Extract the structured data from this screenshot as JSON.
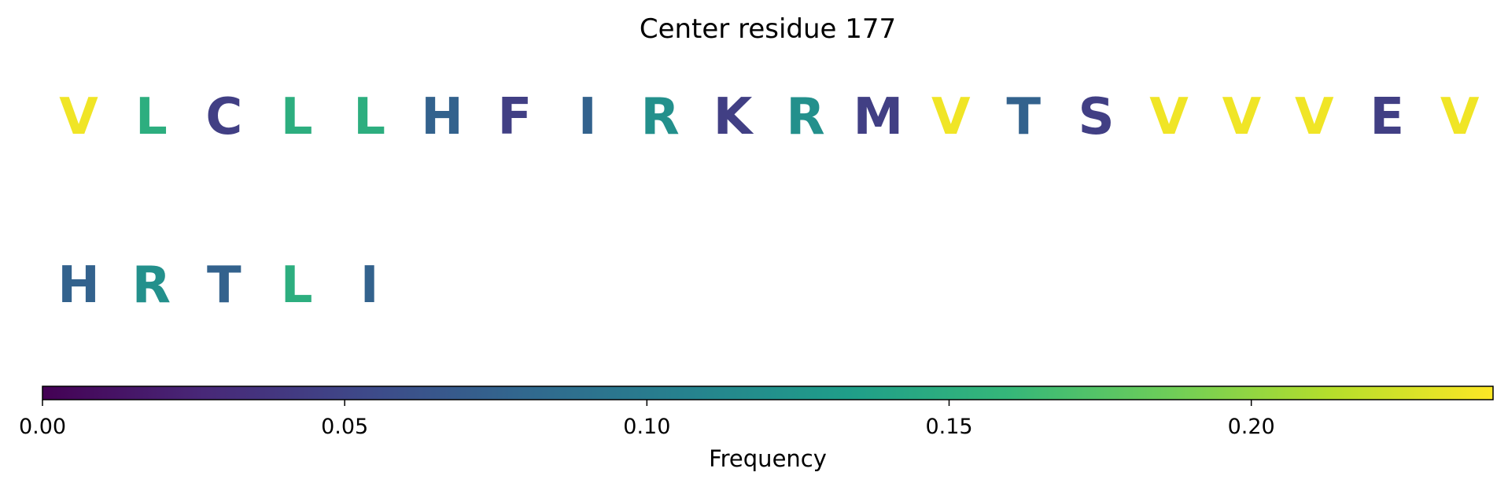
{
  "chart_data": {
    "type": "sequence-logo",
    "title": "Center residue 177",
    "rows": [
      {
        "residues": [
          {
            "letter": "V",
            "frequency": 0.235
          },
          {
            "letter": "L",
            "frequency": 0.15
          },
          {
            "letter": "C",
            "frequency": 0.045
          },
          {
            "letter": "L",
            "frequency": 0.15
          },
          {
            "letter": "L",
            "frequency": 0.15
          },
          {
            "letter": "H",
            "frequency": 0.075
          },
          {
            "letter": "F",
            "frequency": 0.045
          },
          {
            "letter": "I",
            "frequency": 0.075
          },
          {
            "letter": "R",
            "frequency": 0.12
          },
          {
            "letter": "K",
            "frequency": 0.045
          },
          {
            "letter": "R",
            "frequency": 0.12
          },
          {
            "letter": "M",
            "frequency": 0.045
          },
          {
            "letter": "V",
            "frequency": 0.235
          },
          {
            "letter": "T",
            "frequency": 0.075
          },
          {
            "letter": "S",
            "frequency": 0.045
          },
          {
            "letter": "V",
            "frequency": 0.235
          },
          {
            "letter": "V",
            "frequency": 0.235
          },
          {
            "letter": "V",
            "frequency": 0.235
          },
          {
            "letter": "E",
            "frequency": 0.045
          },
          {
            "letter": "V",
            "frequency": 0.235
          }
        ]
      },
      {
        "residues": [
          {
            "letter": "H",
            "frequency": 0.075
          },
          {
            "letter": "R",
            "frequency": 0.12
          },
          {
            "letter": "T",
            "frequency": 0.075
          },
          {
            "letter": "L",
            "frequency": 0.15
          },
          {
            "letter": "I",
            "frequency": 0.075
          }
        ]
      }
    ],
    "colorbar": {
      "colormap": "viridis",
      "range": [
        0,
        0.24
      ],
      "ticks": [
        0.0,
        0.05,
        0.1,
        0.15,
        0.2
      ],
      "tick_labels": [
        "0.00",
        "0.05",
        "0.10",
        "0.15",
        "0.20"
      ],
      "label": "Frequency",
      "orientation": "horizontal"
    }
  }
}
